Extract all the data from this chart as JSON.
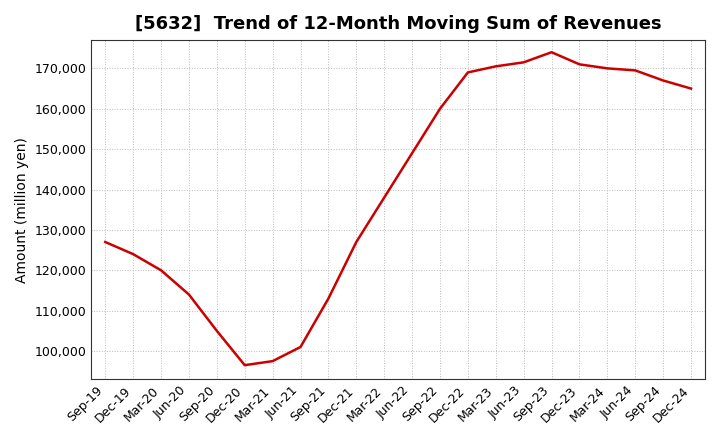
{
  "title": "[5632]  Trend of 12-Month Moving Sum of Revenues",
  "ylabel": "Amount (million yen)",
  "line_color": "#cc0000",
  "background_color": "#ffffff",
  "plot_bg_color": "#ffffff",
  "grid_color": "#bbbbbb",
  "x_labels": [
    "Sep-19",
    "Dec-19",
    "Mar-20",
    "Jun-20",
    "Sep-20",
    "Dec-20",
    "Mar-21",
    "Jun-21",
    "Sep-21",
    "Dec-21",
    "Mar-22",
    "Jun-22",
    "Sep-22",
    "Dec-22",
    "Mar-23",
    "Jun-23",
    "Sep-23",
    "Dec-23",
    "Mar-24",
    "Jun-24",
    "Sep-24",
    "Dec-24"
  ],
  "y_values": [
    127000,
    124000,
    120000,
    114000,
    105000,
    96500,
    97500,
    101000,
    113000,
    127000,
    138000,
    149000,
    160000,
    169000,
    170500,
    171500,
    174000,
    171000,
    170000,
    169500,
    167000,
    165000
  ],
  "ylim": [
    93000,
    177000
  ],
  "yticks": [
    100000,
    110000,
    120000,
    130000,
    140000,
    150000,
    160000,
    170000
  ],
  "title_fontsize": 13,
  "axis_label_fontsize": 10,
  "tick_fontsize": 9
}
